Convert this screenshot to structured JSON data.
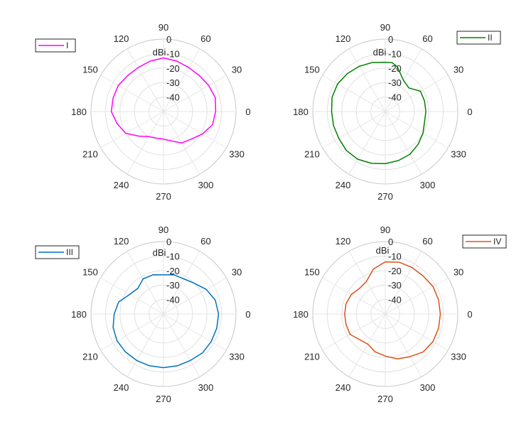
{
  "chart_data": [
    {
      "type": "line",
      "subtype": "polar",
      "title": "",
      "radial_unit": "dBi",
      "rlim": [
        -50,
        0
      ],
      "rticks": [
        "0",
        "-10",
        "-20",
        "-30",
        "-40"
      ],
      "theta_ticks": [
        "0",
        "30",
        "60",
        "90",
        "120",
        "150",
        "180",
        "210",
        "240",
        "270",
        "300",
        "330"
      ],
      "grid": true,
      "legend": {
        "placement": "outside-top-left",
        "entries": [
          "I"
        ]
      },
      "series": [
        {
          "name": "I",
          "color": "#ff00ff",
          "theta": [
            0,
            15,
            30,
            45,
            60,
            75,
            90,
            105,
            120,
            135,
            150,
            165,
            180,
            195,
            210,
            225,
            240,
            255,
            270,
            285,
            300,
            315,
            330,
            345
          ],
          "r": [
            -14,
            -13,
            -14,
            -15,
            -15,
            -14,
            -13,
            -14,
            -15,
            -15,
            -14,
            -14,
            -14,
            -17,
            -20,
            -26,
            -30,
            -31,
            -31,
            -29,
            -25,
            -23,
            -19,
            -15
          ]
        }
      ]
    },
    {
      "type": "line",
      "subtype": "polar",
      "title": "",
      "radial_unit": "dBi",
      "rlim": [
        -50,
        0
      ],
      "rticks": [
        "0",
        "-10",
        "-20",
        "-30",
        "-40"
      ],
      "theta_ticks": [
        "0",
        "30",
        "60",
        "90",
        "120",
        "150",
        "180",
        "210",
        "240",
        "270",
        "300",
        "330"
      ],
      "grid": true,
      "legend": {
        "placement": "outside-top-right",
        "entries": [
          "II"
        ]
      },
      "series": [
        {
          "name": "II",
          "color": "#008000",
          "theta": [
            0,
            15,
            30,
            45,
            60,
            75,
            82,
            90,
            105,
            120,
            135,
            150,
            165,
            180,
            195,
            210,
            225,
            240,
            255,
            270,
            285,
            300,
            315,
            330,
            345
          ],
          "r": [
            -22,
            -22,
            -22,
            -27,
            -25,
            -18,
            -16,
            -16,
            -15,
            -14,
            -13,
            -12,
            -12,
            -13,
            -13,
            -13,
            -12,
            -12,
            -13,
            -14,
            -15,
            -16,
            -18,
            -20,
            -22
          ]
        }
      ]
    },
    {
      "type": "line",
      "subtype": "polar",
      "title": "",
      "radial_unit": "dBi",
      "rlim": [
        -50,
        0
      ],
      "rticks": [
        "0",
        "-10",
        "-20",
        "-30",
        "-40"
      ],
      "theta_ticks": [
        "0",
        "30",
        "60",
        "90",
        "120",
        "150",
        "180",
        "210",
        "240",
        "270",
        "300",
        "330"
      ],
      "grid": true,
      "legend": {
        "placement": "outside-top-left",
        "entries": [
          "III"
        ]
      },
      "series": [
        {
          "name": "III",
          "color": "#0072bd",
          "theta": [
            0,
            15,
            30,
            45,
            60,
            75,
            90,
            105,
            120,
            135,
            150,
            165,
            180,
            195,
            210,
            225,
            240,
            255,
            270,
            285,
            300,
            315,
            330,
            345
          ],
          "r": [
            -12,
            -13,
            -16,
            -20,
            -22,
            -22,
            -23,
            -22,
            -22,
            -25,
            -23,
            -18,
            -16,
            -14,
            -13,
            -13,
            -13,
            -13,
            -13,
            -13,
            -13,
            -12,
            -12,
            -12
          ]
        }
      ]
    },
    {
      "type": "line",
      "subtype": "polar",
      "title": "",
      "radial_unit": "dBi",
      "rlim": [
        -50,
        0
      ],
      "rticks": [
        "0",
        "-10",
        "-20",
        "-30",
        "-40"
      ],
      "theta_ticks": [
        "0",
        "30",
        "60",
        "90",
        "120",
        "150",
        "180",
        "210",
        "240",
        "270",
        "300",
        "330"
      ],
      "grid": true,
      "legend": {
        "placement": "outside-top-right",
        "entries": [
          "IV"
        ]
      },
      "series": [
        {
          "name": "IV",
          "color": "#d95319",
          "theta": [
            0,
            15,
            30,
            45,
            60,
            75,
            90,
            105,
            120,
            135,
            150,
            165,
            180,
            195,
            210,
            225,
            240,
            255,
            270,
            285,
            300,
            315,
            330,
            345
          ],
          "r": [
            -12,
            -12,
            -12,
            -13,
            -13,
            -13,
            -14,
            -18,
            -24,
            -25,
            -23,
            -22,
            -22,
            -22,
            -22,
            -25,
            -26,
            -23,
            -21,
            -18,
            -16,
            -13,
            -12,
            -12
          ]
        }
      ]
    }
  ]
}
